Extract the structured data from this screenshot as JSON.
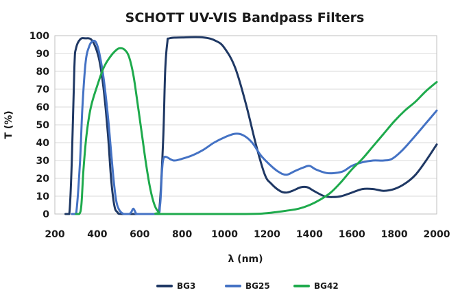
{
  "chart_data": {
    "type": "line",
    "title": "SCHOTT UV-VIS Bandpass Filters",
    "xlabel": "λ (nm)",
    "ylabel": "T (%)",
    "xlim": [
      200,
      2000
    ],
    "ylim": [
      0,
      100
    ],
    "xticks": [
      200,
      400,
      600,
      800,
      1000,
      1200,
      1400,
      1600,
      1800,
      2000
    ],
    "yticks": [
      0,
      10,
      20,
      30,
      40,
      50,
      60,
      70,
      80,
      90,
      100
    ],
    "grid": "horizontal",
    "legend_position": "bottom",
    "series": [
      {
        "name": "BG3",
        "color": "#1f3864",
        "points": [
          [
            250,
            0
          ],
          [
            268,
            0
          ],
          [
            280,
            30
          ],
          [
            292,
            82
          ],
          [
            300,
            93
          ],
          [
            320,
            98
          ],
          [
            345,
            98.5
          ],
          [
            370,
            98
          ],
          [
            390,
            94
          ],
          [
            410,
            86
          ],
          [
            430,
            70
          ],
          [
            450,
            45
          ],
          [
            465,
            20
          ],
          [
            480,
            5
          ],
          [
            495,
            1
          ],
          [
            520,
            0
          ],
          [
            660,
            0
          ],
          [
            690,
            0
          ],
          [
            710,
            40
          ],
          [
            720,
            80
          ],
          [
            730,
            96
          ],
          [
            740,
            98.5
          ],
          [
            800,
            99
          ],
          [
            900,
            99
          ],
          [
            960,
            97
          ],
          [
            1000,
            93
          ],
          [
            1050,
            82
          ],
          [
            1100,
            62
          ],
          [
            1150,
            38
          ],
          [
            1190,
            22
          ],
          [
            1220,
            17
          ],
          [
            1260,
            13
          ],
          [
            1290,
            12
          ],
          [
            1320,
            13
          ],
          [
            1360,
            15
          ],
          [
            1390,
            15
          ],
          [
            1420,
            13
          ],
          [
            1470,
            10
          ],
          [
            1510,
            9.5
          ],
          [
            1550,
            10
          ],
          [
            1600,
            12
          ],
          [
            1650,
            14
          ],
          [
            1700,
            14
          ],
          [
            1750,
            13
          ],
          [
            1800,
            14
          ],
          [
            1850,
            17
          ],
          [
            1900,
            22
          ],
          [
            1950,
            30
          ],
          [
            2000,
            39
          ]
        ]
      },
      {
        "name": "BG25",
        "color": "#4472c4",
        "points": [
          [
            280,
            0
          ],
          [
            300,
            0
          ],
          [
            318,
            28
          ],
          [
            330,
            60
          ],
          [
            345,
            85
          ],
          [
            362,
            94
          ],
          [
            380,
            97
          ],
          [
            395,
            96
          ],
          [
            410,
            90
          ],
          [
            430,
            76
          ],
          [
            450,
            55
          ],
          [
            465,
            35
          ],
          [
            478,
            18
          ],
          [
            490,
            7
          ],
          [
            505,
            2
          ],
          [
            525,
            0
          ],
          [
            550,
            0
          ],
          [
            560,
            1
          ],
          [
            570,
            3
          ],
          [
            580,
            1
          ],
          [
            590,
            0
          ],
          [
            680,
            0
          ],
          [
            696,
            5
          ],
          [
            705,
            24
          ],
          [
            712,
            31
          ],
          [
            725,
            32
          ],
          [
            760,
            30
          ],
          [
            800,
            31
          ],
          [
            850,
            33
          ],
          [
            900,
            36
          ],
          [
            950,
            40
          ],
          [
            1000,
            43
          ],
          [
            1050,
            45
          ],
          [
            1090,
            44
          ],
          [
            1130,
            40
          ],
          [
            1170,
            33
          ],
          [
            1210,
            28
          ],
          [
            1250,
            24
          ],
          [
            1290,
            22
          ],
          [
            1330,
            24
          ],
          [
            1370,
            26
          ],
          [
            1400,
            27
          ],
          [
            1430,
            25
          ],
          [
            1480,
            23
          ],
          [
            1520,
            23
          ],
          [
            1560,
            24
          ],
          [
            1600,
            27
          ],
          [
            1650,
            29
          ],
          [
            1700,
            30
          ],
          [
            1750,
            30
          ],
          [
            1790,
            31
          ],
          [
            1840,
            36
          ],
          [
            1900,
            44
          ],
          [
            1950,
            51
          ],
          [
            2000,
            58
          ]
        ]
      },
      {
        "name": "BG42",
        "color": "#1eaa4c",
        "points": [
          [
            300,
            0
          ],
          [
            315,
            0
          ],
          [
            325,
            5
          ],
          [
            335,
            25
          ],
          [
            350,
            45
          ],
          [
            370,
            60
          ],
          [
            400,
            72
          ],
          [
            430,
            82
          ],
          [
            460,
            88
          ],
          [
            490,
            92
          ],
          [
            510,
            93
          ],
          [
            530,
            92
          ],
          [
            550,
            88
          ],
          [
            570,
            78
          ],
          [
            590,
            62
          ],
          [
            610,
            45
          ],
          [
            630,
            28
          ],
          [
            650,
            14
          ],
          [
            670,
            5
          ],
          [
            690,
            1
          ],
          [
            710,
            0
          ],
          [
            1100,
            0
          ],
          [
            1200,
            0.5
          ],
          [
            1300,
            2
          ],
          [
            1350,
            3
          ],
          [
            1400,
            5
          ],
          [
            1450,
            8
          ],
          [
            1500,
            12
          ],
          [
            1550,
            18
          ],
          [
            1600,
            25
          ],
          [
            1650,
            31
          ],
          [
            1700,
            38
          ],
          [
            1750,
            45
          ],
          [
            1800,
            52
          ],
          [
            1850,
            58
          ],
          [
            1900,
            63
          ],
          [
            1950,
            69
          ],
          [
            2000,
            74
          ]
        ]
      }
    ]
  }
}
